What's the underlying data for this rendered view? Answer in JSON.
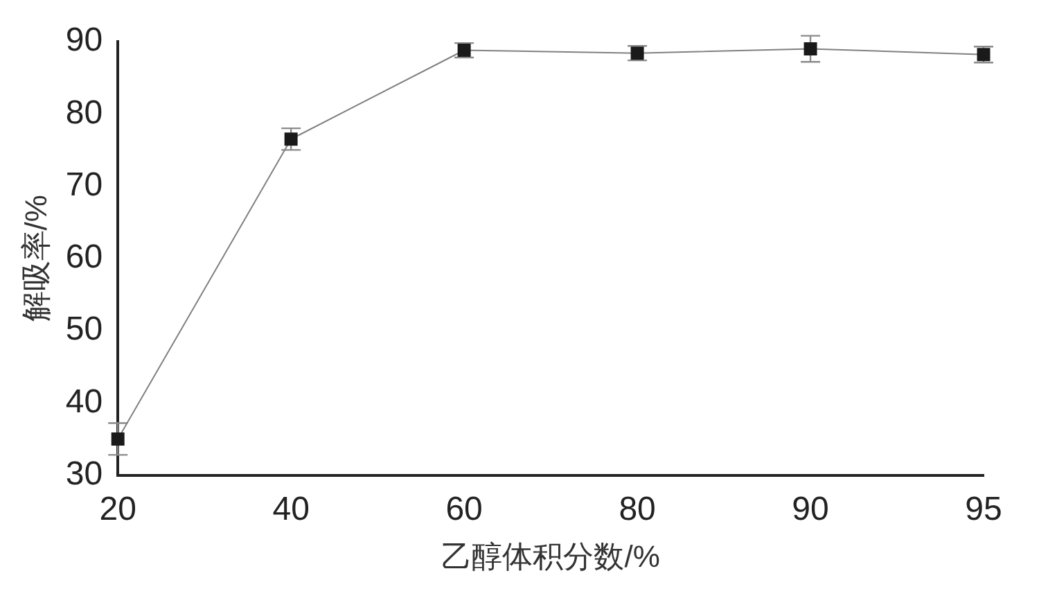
{
  "chart_data": {
    "type": "line",
    "xlabel": "乙醇体积分数/%",
    "ylabel": "解吸率/%",
    "categories": [
      "20",
      "40",
      "60",
      "80",
      "90",
      "95"
    ],
    "series": [
      {
        "color": "#1a1a1a",
        "values": [
          35,
          76.5,
          88.8,
          88.4,
          89,
          88.2
        ],
        "errors": [
          2.2,
          1.5,
          1,
          1,
          1.8,
          1.1
        ]
      }
    ],
    "ylim": [
      30,
      90
    ],
    "yticks": [
      30,
      40,
      50,
      60,
      70,
      80,
      90
    ],
    "grid": false,
    "legend": false,
    "marker": "square",
    "line_style": "solid"
  }
}
